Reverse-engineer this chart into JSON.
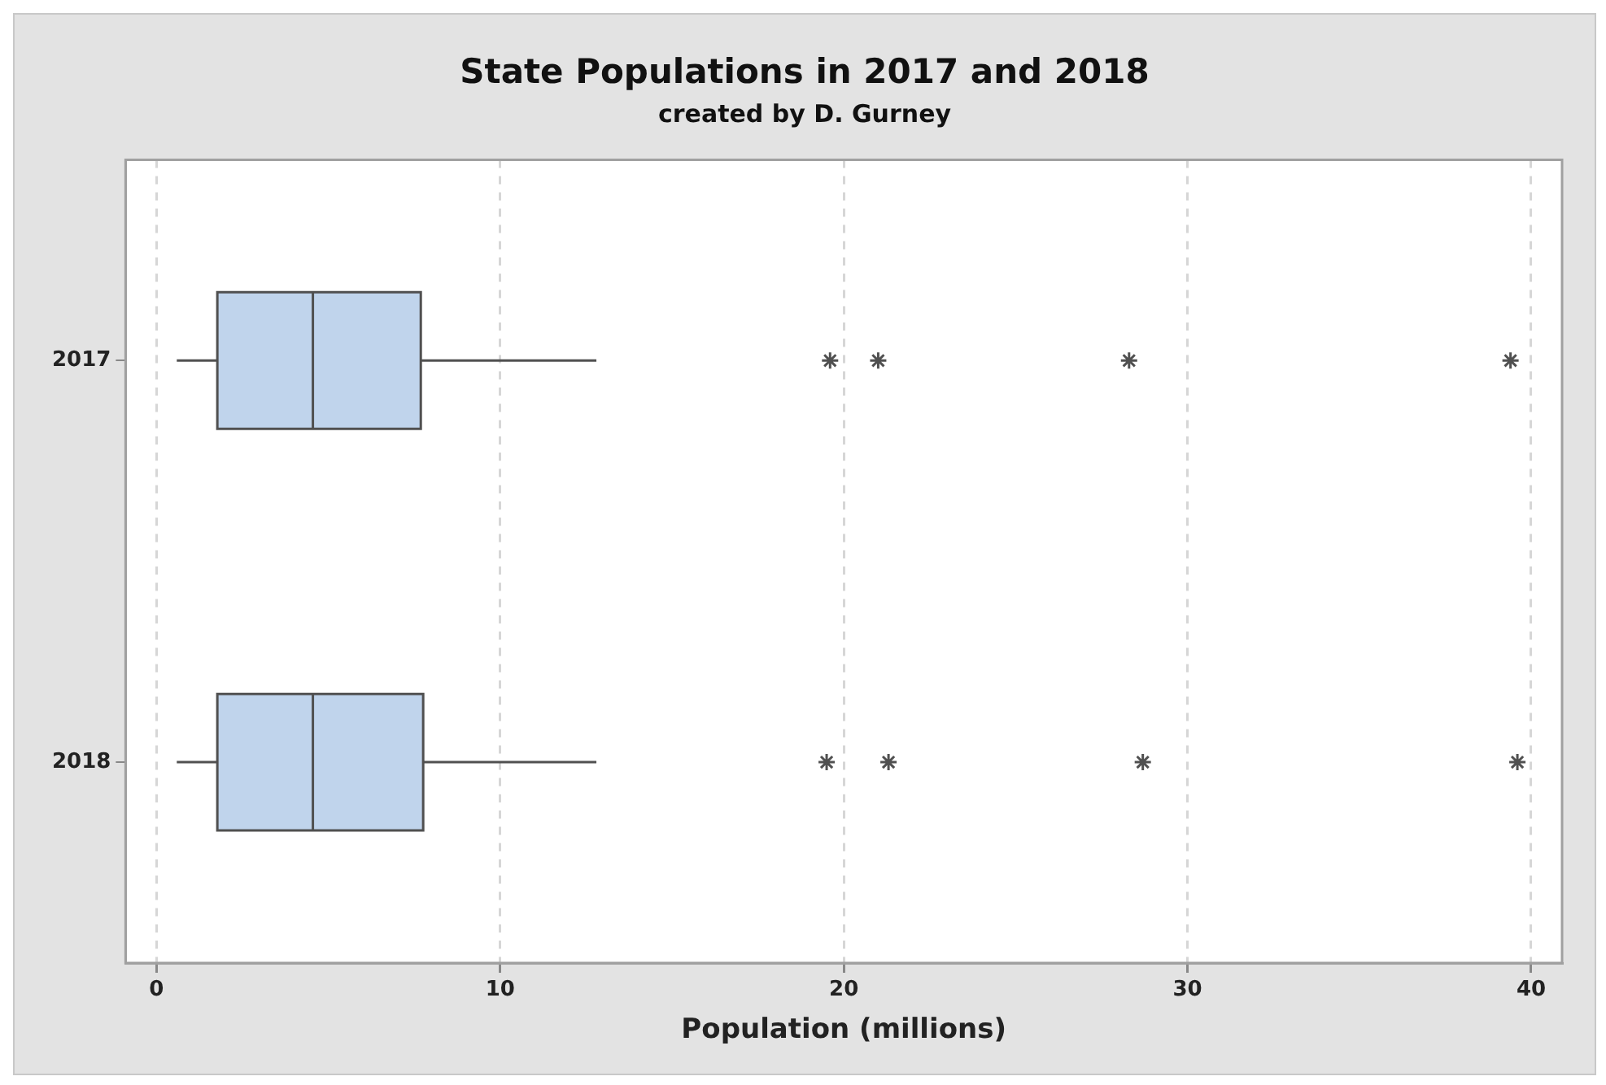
{
  "chart_data": {
    "type": "box",
    "title": "State Populations in 2017 and 2018",
    "subtitle": "created by D. Gurney",
    "xlabel": "Population (millions)",
    "orientation": "horizontal",
    "categories": [
      "2017",
      "2018"
    ],
    "color": "#c0d4ec",
    "marker": "star",
    "boxes": [
      {
        "low": 0.59,
        "q1": 1.77,
        "median": 4.55,
        "q3": 7.69,
        "high": 12.8,
        "outliers": [
          19.6,
          21.0,
          28.3,
          39.4
        ]
      },
      {
        "low": 0.59,
        "q1": 1.77,
        "median": 4.55,
        "q3": 7.76,
        "high": 12.8,
        "outliers": [
          19.5,
          21.3,
          28.7,
          39.6
        ]
      }
    ],
    "xlim": [
      -0.9,
      40.9
    ],
    "xticks": [
      0,
      10,
      20,
      30,
      40
    ],
    "grid": "x",
    "legend": false
  }
}
